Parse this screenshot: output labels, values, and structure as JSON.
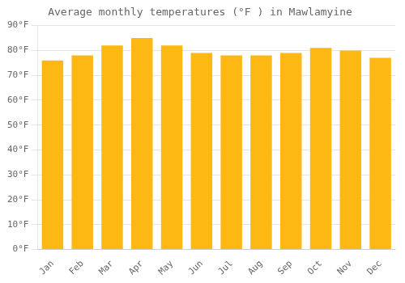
{
  "chart_data": {
    "type": "bar",
    "title": "Average monthly temperatures (°F ) in Mawlamyine",
    "categories": [
      "Jan",
      "Feb",
      "Mar",
      "Apr",
      "May",
      "Jun",
      "Jul",
      "Aug",
      "Sep",
      "Oct",
      "Nov",
      "Dec"
    ],
    "values": [
      76,
      78,
      82,
      85,
      82,
      79,
      78,
      78,
      79,
      81,
      80,
      77
    ],
    "color": "#FDB813",
    "ylim": [
      0,
      90
    ],
    "yticks": [
      {
        "value": 0,
        "label": "0°F"
      },
      {
        "value": 10,
        "label": "10°F"
      },
      {
        "value": 20,
        "label": "20°F"
      },
      {
        "value": 30,
        "label": "30°F"
      },
      {
        "value": 40,
        "label": "40°F"
      },
      {
        "value": 50,
        "label": "50°F"
      },
      {
        "value": 60,
        "label": "60°F"
      },
      {
        "value": 70,
        "label": "70°F"
      },
      {
        "value": 80,
        "label": "80°F"
      },
      {
        "value": 90,
        "label": "90°F"
      }
    ],
    "grid": true
  }
}
